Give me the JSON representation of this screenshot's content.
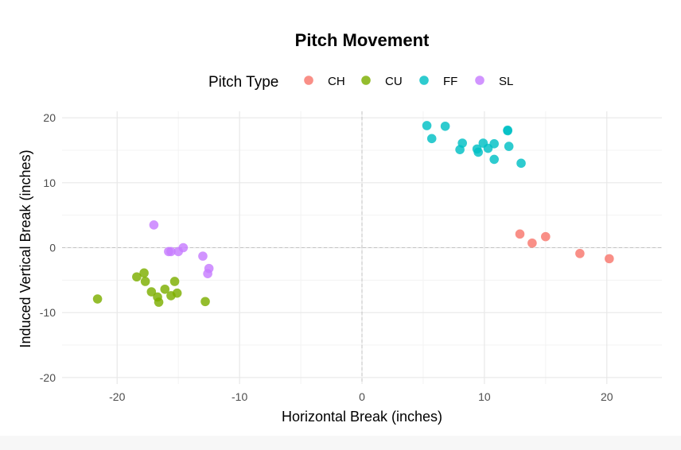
{
  "chart_data": {
    "type": "scatter",
    "title": "Pitch Movement",
    "xlabel": "Horizontal Break (inches)",
    "ylabel": "Induced Vertical Break (inches)",
    "xlim": [
      -24.5,
      24.5
    ],
    "ylim": [
      -21,
      21
    ],
    "x_ticks": [
      -20,
      -10,
      0,
      10,
      20
    ],
    "y_ticks": [
      -20,
      -10,
      0,
      10,
      20
    ],
    "grid": true,
    "reference_lines": {
      "x": 0,
      "y": 0,
      "style": "dashed"
    },
    "legend": {
      "title": "Pitch Type",
      "position": "top"
    },
    "series": [
      {
        "name": "CH",
        "color": "#F8766D",
        "x": [
          12.9,
          13.9,
          15.0,
          17.8,
          20.2
        ],
        "y": [
          2.1,
          0.7,
          1.7,
          -0.9,
          -1.7
        ]
      },
      {
        "name": "CU",
        "color": "#7CAE00",
        "x": [
          -21.6,
          -18.4,
          -17.8,
          -17.7,
          -17.2,
          -16.7,
          -16.6,
          -16.1,
          -15.6,
          -15.3,
          -15.1,
          -12.8
        ],
        "y": [
          -7.9,
          -4.5,
          -3.9,
          -5.2,
          -6.8,
          -7.6,
          -8.4,
          -6.4,
          -7.4,
          -5.2,
          -7.0,
          -8.3
        ]
      },
      {
        "name": "FF",
        "color": "#00BFC4",
        "x": [
          5.3,
          5.7,
          6.8,
          8.0,
          8.2,
          9.4,
          9.5,
          9.9,
          10.3,
          10.8,
          10.8,
          11.9,
          11.9,
          12.0,
          13.0
        ],
        "y": [
          18.8,
          16.8,
          18.7,
          15.1,
          16.1,
          15.2,
          14.7,
          16.1,
          15.3,
          16.0,
          13.6,
          18.1,
          18.0,
          15.6,
          13.0
        ]
      },
      {
        "name": "SL",
        "color": "#C77CFF",
        "x": [
          -17.0,
          -15.8,
          -15.6,
          -15.0,
          -14.6,
          -13.0,
          -12.6,
          -12.5
        ],
        "y": [
          3.5,
          -0.6,
          -0.6,
          -0.6,
          0.0,
          -1.3,
          -4.0,
          -3.2
        ]
      }
    ]
  }
}
